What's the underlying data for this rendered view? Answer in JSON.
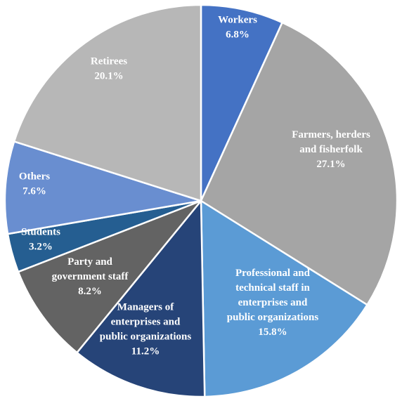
{
  "chart_data": {
    "type": "pie",
    "start_angle_deg": 0,
    "direction": "clockwise",
    "slices": [
      {
        "lines": [
          "Workers",
          "6.8%"
        ],
        "value": 6.8,
        "color": "#4472C4"
      },
      {
        "lines": [
          "Farmers, herders",
          "and fisherfolk",
          "27.1%"
        ],
        "value": 27.1,
        "color": "#A5A5A5"
      },
      {
        "lines": [
          "Professional and",
          "technical staff in",
          "enterprises and",
          "public organizations",
          "15.8%"
        ],
        "value": 15.8,
        "color": "#5B9BD5"
      },
      {
        "lines": [
          "Managers of",
          "enterprises and",
          "public organizations",
          "11.2%"
        ],
        "value": 11.2,
        "color": "#264478"
      },
      {
        "lines": [
          "Party and",
          "government staff",
          "8.2%"
        ],
        "value": 8.2,
        "color": "#636363"
      },
      {
        "lines": [
          "Students",
          "3.2%"
        ],
        "value": 3.2,
        "color": "#255E91"
      },
      {
        "lines": [
          "Others",
          "7.6%"
        ],
        "value": 7.6,
        "color": "#698ED0"
      },
      {
        "lines": [
          "Retirees",
          "20.1%"
        ],
        "value": 20.1,
        "color": "#B7B7B7"
      }
    ]
  }
}
